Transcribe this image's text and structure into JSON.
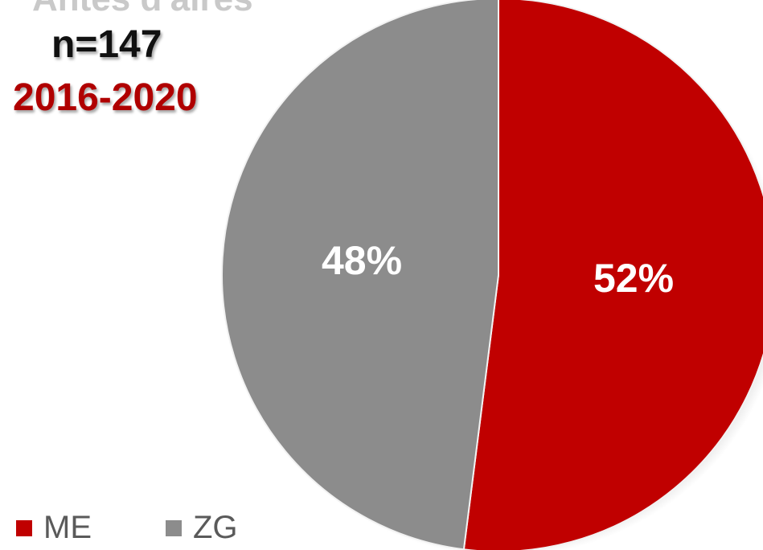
{
  "header": {
    "cut_title": "Antes d'aires",
    "n_label": "n=147",
    "period_label": "2016-2020"
  },
  "chart_data": {
    "type": "pie",
    "title": "",
    "slices": [
      {
        "label": "ME",
        "value": 52,
        "display": "52%",
        "color": "#c00000"
      },
      {
        "label": "ZG",
        "value": 48,
        "display": "48%",
        "color": "#8c8c8c"
      }
    ],
    "legend_position": "bottom-left"
  },
  "legend": {
    "items": [
      {
        "label": "ME",
        "color": "#c00000"
      },
      {
        "label": "ZG",
        "color": "#8c8c8c"
      }
    ]
  }
}
